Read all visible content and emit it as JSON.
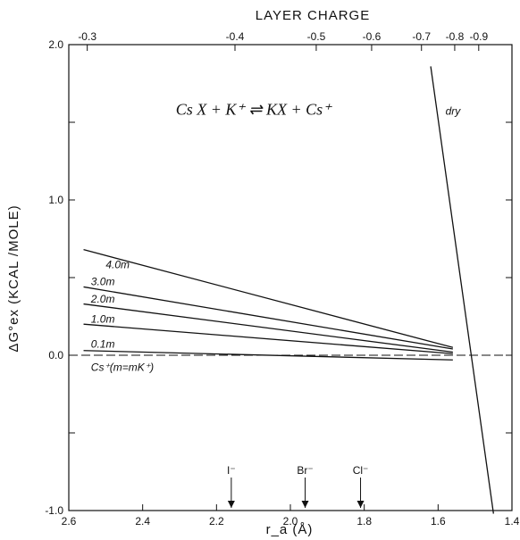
{
  "chart_data": {
    "type": "line",
    "title": "",
    "xlabel": "r_a (Å)",
    "ylabel": "ΔG°ex (KCAL /MOLE)",
    "top_axis_label": "LAYER CHARGE",
    "xlim": [
      2.6,
      1.4
    ],
    "ylim": [
      -1.0,
      2.0
    ],
    "grid": false,
    "x_ticks": [
      2.6,
      2.4,
      2.2,
      2.0,
      1.8,
      1.6,
      1.4
    ],
    "x_tick_labels": [
      "2.6",
      "2.4",
      "2.2",
      "2.0",
      "1.8",
      "1.6",
      "1.4"
    ],
    "y_ticks": [
      -1.0,
      -0.5,
      0.0,
      0.5,
      1.0,
      1.5,
      2.0
    ],
    "y_tick_labels": [
      "-1.0",
      "",
      "0.0",
      "",
      "1.0",
      "",
      "2.0"
    ],
    "top_ticks": [
      {
        "x": 2.55,
        "label": "-0.3"
      },
      {
        "x": 2.15,
        "label": "-0.4"
      },
      {
        "x": 1.93,
        "label": "-0.5"
      },
      {
        "x": 1.78,
        "label": "-0.6"
      },
      {
        "x": 1.645,
        "label": "-0.7"
      },
      {
        "x": 1.555,
        "label": "-0.8"
      },
      {
        "x": 1.49,
        "label": "-0.9"
      }
    ],
    "equation": {
      "text": "Cs X + K⁺ ⇌ KX + Cs⁺",
      "x": 2.1,
      "y": 1.55
    },
    "series": [
      {
        "name": "dry",
        "x": [
          1.62,
          1.45
        ],
        "y": [
          1.86,
          -1.02
        ],
        "label_x": 1.58,
        "label_y": 1.55
      },
      {
        "name": "4.0m",
        "x": [
          2.56,
          1.56
        ],
        "y": [
          0.68,
          0.05
        ],
        "label_x": 2.5,
        "label_y": 0.56
      },
      {
        "name": "3.0m",
        "x": [
          2.56,
          1.56
        ],
        "y": [
          0.44,
          0.04
        ],
        "label_x": 2.54,
        "label_y": 0.45
      },
      {
        "name": "2.0m",
        "x": [
          2.56,
          1.56
        ],
        "y": [
          0.33,
          0.02
        ],
        "label_x": 2.54,
        "label_y": 0.34
      },
      {
        "name": "1.0m",
        "x": [
          2.56,
          1.56
        ],
        "y": [
          0.2,
          0.01
        ],
        "label_x": 2.54,
        "label_y": 0.21
      },
      {
        "name": "0.1m",
        "x": [
          2.56,
          1.56
        ],
        "y": [
          0.03,
          -0.03
        ],
        "label_x": 2.54,
        "label_y": 0.05
      },
      {
        "name": "Cs⁺(m=mK⁺)",
        "x": [
          2.6,
          1.4
        ],
        "y": [
          0.0,
          0.0
        ],
        "label_x": 2.54,
        "label_y": -0.1
      }
    ],
    "annotations": [
      {
        "label": "I⁻",
        "x": 2.16
      },
      {
        "label": "Br⁻",
        "x": 1.96
      },
      {
        "label": "Cl⁻",
        "x": 1.81
      }
    ]
  }
}
